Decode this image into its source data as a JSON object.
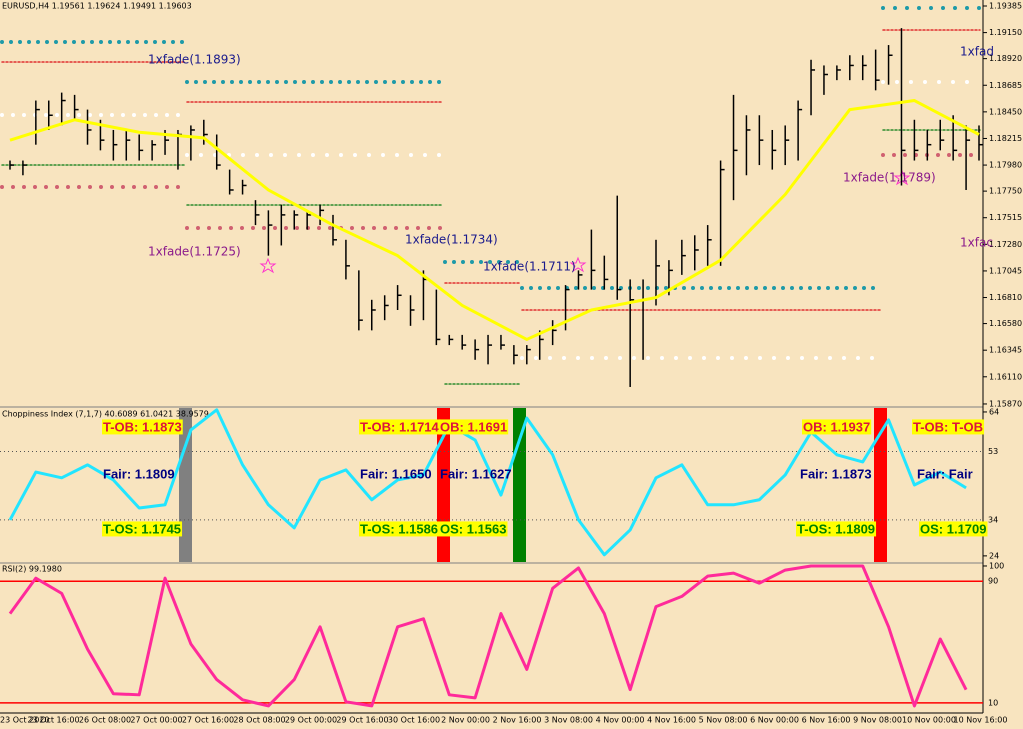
{
  "chart_data": [
    {
      "type": "ohlc",
      "title": "EURUSD,H4  1.19561 1.19624 1.19491 1.19603",
      "color": "#000000",
      "high": [
        1.1802,
        1.1802,
        1.1855,
        1.1855,
        1.1862,
        1.186,
        1.1847,
        1.1838,
        1.1829,
        1.1829,
        1.1825,
        1.182,
        1.1829,
        1.1829,
        1.1833,
        1.1838,
        1.1825,
        1.1794,
        1.1785,
        1.1767,
        1.1758,
        1.1763,
        1.1758,
        1.1758,
        1.1763,
        1.1754,
        1.1732,
        1.1705,
        1.1679,
        1.1683,
        1.1692,
        1.1683,
        1.1705,
        1.1688,
        1.1648,
        1.1648,
        1.1644,
        1.1648,
        1.1648,
        1.1639,
        1.1639,
        1.1652,
        1.1661,
        1.1692,
        1.1705,
        1.1741,
        1.1718,
        1.1771,
        1.1697,
        1.1697,
        1.1732,
        1.1714,
        1.1732,
        1.1736,
        1.1745,
        1.1802,
        1.186,
        1.1842,
        1.1842,
        1.1829,
        1.1833,
        1.1855,
        1.1891,
        1.1886,
        1.1886,
        1.1895,
        1.1895,
        1.19,
        1.1904,
        1.1919,
        1.1838,
        1.1829,
        1.1838,
        1.1842,
        1.1833,
        1.1833
      ],
      "low": [
        1.1794,
        1.1789,
        1.1816,
        1.1829,
        1.1833,
        1.1838,
        1.1816,
        1.1811,
        1.1802,
        1.1802,
        1.1802,
        1.1802,
        1.1807,
        1.1794,
        1.1802,
        1.1816,
        1.1794,
        1.1772,
        1.1772,
        1.1745,
        1.1718,
        1.1727,
        1.1741,
        1.1741,
        1.1745,
        1.1727,
        1.1697,
        1.1652,
        1.1652,
        1.1661,
        1.167,
        1.1656,
        1.1661,
        1.1639,
        1.1639,
        1.1635,
        1.1626,
        1.1622,
        1.1635,
        1.1622,
        1.1622,
        1.1626,
        1.1639,
        1.1652,
        1.1688,
        1.1688,
        1.1688,
        1.1679,
        1.1602,
        1.1626,
        1.1674,
        1.1683,
        1.1701,
        1.1705,
        1.1709,
        1.1709,
        1.1767,
        1.1789,
        1.1798,
        1.1794,
        1.1798,
        1.1802,
        1.1842,
        1.186,
        1.1873,
        1.1873,
        1.1873,
        1.1864,
        1.1869,
        1.178,
        1.1802,
        1.1802,
        1.1811,
        1.1802,
        1.1776,
        1.1802
      ],
      "close": [
        1.1798,
        1.1798,
        1.1847,
        1.1842,
        1.1855,
        1.1847,
        1.1829,
        1.182,
        1.1816,
        1.182,
        1.1811,
        1.1816,
        1.182,
        1.1825,
        1.1829,
        1.1825,
        1.1798,
        1.1776,
        1.178,
        1.1754,
        1.1745,
        1.1754,
        1.1754,
        1.1754,
        1.1758,
        1.1732,
        1.1709,
        1.1661,
        1.167,
        1.1674,
        1.1683,
        1.167,
        1.1697,
        1.1644,
        1.1644,
        1.1639,
        1.1635,
        1.1639,
        1.1639,
        1.163,
        1.1635,
        1.1644,
        1.1652,
        1.1688,
        1.1701,
        1.1705,
        1.1697,
        1.1688,
        1.1679,
        1.1679,
        1.1709,
        1.1705,
        1.1718,
        1.1723,
        1.1732,
        1.1794,
        1.1811,
        1.1829,
        1.182,
        1.1811,
        1.182,
        1.1847,
        1.1882,
        1.1878,
        1.1882,
        1.1886,
        1.1886,
        1.1873,
        1.1895,
        1.1811,
        1.1811,
        1.1816,
        1.182,
        1.1811,
        1.182,
        1.1816
      ],
      "series": [
        {
          "color": "#ffff00",
          "x": [
            0,
            5,
            10,
            15,
            20,
            25,
            30,
            35,
            40,
            45,
            50,
            55,
            60,
            65,
            70,
            75
          ],
          "values": [
            1.182,
            1.1838,
            1.1827,
            1.1822,
            1.1776,
            1.1745,
            1.1718,
            1.1674,
            1.1644,
            1.167,
            1.1681,
            1.1714,
            1.1772,
            1.1847,
            1.1855,
            1.1825
          ]
        }
      ],
      "ylim": [
        1.15852,
        1.19438
      ],
      "yticks": [
        1.19385,
        {
          "value": 1.1915,
          "label": "1.19150"
        },
        {
          "value": 1.1892,
          "label": "1.18920"
        },
        1.18685,
        {
          "value": 1.1845,
          "label": "1.18450"
        },
        1.18215,
        {
          "value": 1.1798,
          "label": "1.17980"
        },
        {
          "value": 1.1775,
          "label": "1.17750"
        },
        1.17515,
        {
          "value": 1.1728,
          "label": "1.17280"
        },
        1.17045,
        {
          "value": 1.1681,
          "label": "1.16810"
        },
        {
          "value": 1.1658,
          "label": "1.16580"
        },
        1.16345,
        {
          "value": 1.1611,
          "label": "1.16110"
        },
        {
          "value": 1.1587,
          "label": "1.15870"
        }
      ],
      "annotations": [
        {
          "text": "1xfade(1.1893)",
          "color": "#1a1a8c"
        },
        {
          "text": "1xfade(1.1725)",
          "color": "#8b1a8b"
        },
        {
          "text": "1xfade(1.1734)",
          "color": "#1a1a8c"
        },
        {
          "text": "1xfade(1.1711)",
          "color": "#1a1a8c"
        },
        {
          "text": "1xfade(1.1789)",
          "color": "#8b1a8b"
        },
        {
          "text": "1xfad",
          "color": "#1a1a8c"
        },
        {
          "text": "1xfac",
          "color": "#8b1a8b"
        }
      ]
    },
    {
      "type": "line",
      "title": "Choppiness Index (7,1,7) 40.6089 61.0421 38.9579",
      "series": [
        {
          "color": "#22e5ff",
          "x": [
            0,
            2,
            4,
            6,
            8,
            10,
            12,
            14,
            16,
            18,
            20,
            22,
            24,
            26,
            28,
            30,
            32,
            34,
            36,
            38,
            40,
            42,
            44,
            46,
            48,
            50,
            52,
            54,
            56,
            58,
            60,
            62,
            64,
            66,
            68,
            70,
            72,
            74
          ],
          "values": [
            34.0,
            47.3,
            45.7,
            49.3,
            45.1,
            37.3,
            38.2,
            59.0,
            64.6,
            49.3,
            38.2,
            31.8,
            45.1,
            47.9,
            39.6,
            45.1,
            46.5,
            60.4,
            56.2,
            40.9,
            62.3,
            52.1,
            34.0,
            24.3,
            31.2,
            45.7,
            49.3,
            38.2,
            38.2,
            39.6,
            46.5,
            58.4,
            52.1,
            50.1,
            61.8,
            43.7,
            47.3,
            42.9
          ]
        }
      ],
      "ylim": [
        22.3,
        65.1
      ],
      "yticks": [
        64,
        24
      ],
      "levels": [
        53,
        34
      ],
      "level_color": "#555555",
      "annotations": [
        {
          "text": "T-OB: 1.1873",
          "color": "#dc143c",
          "background": "#ffff00"
        },
        {
          "text": "Fair: 1.1809",
          "color": "#000080"
        },
        {
          "text": "T-OS: 1.1745",
          "color": "#008000",
          "background": "#ffff00"
        },
        {
          "text": "T-OB: 1.1714",
          "color": "#dc143c",
          "background": "#ffff00"
        },
        {
          "text": "Fair: 1.1650",
          "color": "#000080"
        },
        {
          "text": "T-OS: 1.1586",
          "color": "#008000",
          "background": "#ffff00"
        },
        {
          "text": "OB: 1.1691",
          "color": "#dc143c",
          "background": "#ffff00"
        },
        {
          "text": "Fair: 1.1627",
          "color": "#000080"
        },
        {
          "text": "OS: 1.1563",
          "color": "#008000",
          "background": "#ffff00"
        },
        {
          "text": "OB: 1.1937",
          "color": "#dc143c",
          "background": "#ffff00"
        },
        {
          "text": "Fair: 1.1873",
          "color": "#000080"
        },
        {
          "text": "T-OS: 1.1809",
          "color": "#008000",
          "background": "#ffff00"
        },
        {
          "text": "T-OB: T-OB",
          "color": "#dc143c",
          "background": "#ffff00"
        },
        {
          "text": "Fair: Fair",
          "color": "#000080"
        },
        {
          "text": "OS: 1.1709",
          "color": "#008000",
          "background": "#ffff00"
        }
      ]
    },
    {
      "type": "line",
      "title": "RSI(2) 99.1980",
      "series": [
        {
          "color": "#ff2a9a",
          "x": [
            0,
            2,
            4,
            6,
            8,
            10,
            12,
            14,
            16,
            18,
            20,
            22,
            24,
            26,
            28,
            30,
            32,
            34,
            36,
            38,
            40,
            42,
            44,
            46,
            48,
            50,
            52,
            54,
            56,
            58,
            60,
            62,
            64,
            66,
            68,
            70,
            72,
            74
          ],
          "values": [
            68.7,
            92,
            82,
            45.3,
            16,
            15.3,
            92,
            48.7,
            25.3,
            12,
            8,
            25.3,
            60,
            10.7,
            8,
            60,
            65.3,
            15.3,
            13.3,
            68.7,
            32,
            85.3,
            98.7,
            68.7,
            18.7,
            73.3,
            80,
            93.3,
            95.3,
            88.7,
            97.3,
            100,
            100,
            100,
            60,
            8,
            52,
            18.7
          ]
        }
      ],
      "ylim": [
        4,
        101.3
      ],
      "yticks": [
        100
      ],
      "levels": [
        90,
        10
      ],
      "level_color": "#ff0000",
      "x_labels": [
        "23 Oct 2020",
        "23 Oct 16:00",
        "26 Oct 08:00",
        "27 Oct 00:00",
        "27 Oct 16:00",
        "28 Oct 08:00",
        "29 Oct 00:00",
        "29 Oct 16:00",
        "30 Oct 16:00",
        "2 Nov 00:00",
        "2 Nov 16:00",
        "3 Nov 08:00",
        "4 Nov 00:00",
        "4 Nov 16:00",
        "5 Nov 08:00",
        "6 Nov 00:00",
        "6 Nov 16:00",
        "9 Nov 08:00",
        "10 Nov 00:00",
        "10 Nov 16:00"
      ]
    }
  ]
}
